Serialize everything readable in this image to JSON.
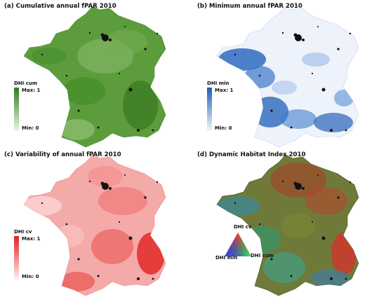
{
  "panels": [
    {
      "id": "a",
      "title": "(a) Cumulative annual fPAR 2010",
      "legend": {
        "title": "DHI cum",
        "max_label": "Max: 1",
        "min_label": "Min: 0"
      },
      "color_max": "#2e7d1e",
      "color_min": "#eaf4e4",
      "base_fill": "#5c9c3c"
    },
    {
      "id": "b",
      "title": "(b) Minimum annual fPAR 2010",
      "legend": {
        "title": "DHI min",
        "max_label": "Max: 1",
        "min_label": "Min: 0"
      },
      "color_max": "#1f5fb4",
      "color_min": "#f2f6fc",
      "base_fill": "#e8eef8"
    },
    {
      "id": "c",
      "title": "(c) Variability of annual fPAR 2010",
      "legend": {
        "title": "DHI cv",
        "max_label": "Max: 1",
        "min_label": "Min: 0"
      },
      "color_max": "#e3201f",
      "color_min": "#fdeeee",
      "base_fill": "#f4a6a4"
    },
    {
      "id": "d",
      "title": "(d) Dynamic Habitat Index 2010",
      "legend": {
        "top_label": "DHI cv",
        "left_label": "DHI min",
        "right_label": "DHI cum"
      },
      "base_fill": "#6f7a3a"
    }
  ]
}
